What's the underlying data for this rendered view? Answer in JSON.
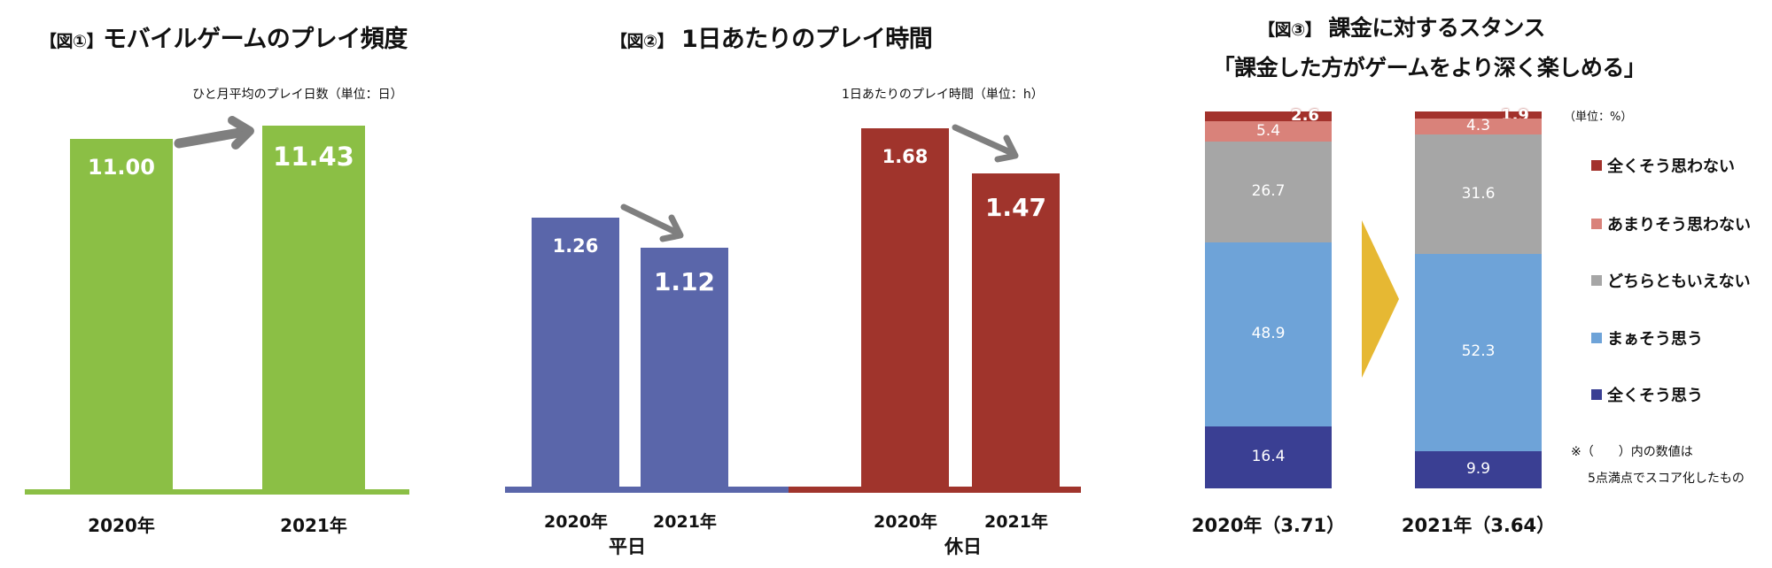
{
  "colors": {
    "green": "#8bbf45",
    "blue": "#5a66aa",
    "red": "#a0342c",
    "arrow": "#7f7f7f",
    "yellow": "#e6b833"
  },
  "chart_data": [
    {
      "type": "bar",
      "title_prefix": "【図①】",
      "title": "モバイルゲームのプレイ頻度",
      "subtitle": "ひと月平均のプレイ日数（単位：日）",
      "categories": [
        "2020年",
        "2021年"
      ],
      "values": [
        11.0,
        11.43
      ],
      "labels": [
        "11.00",
        "11.43"
      ],
      "ylabel": "",
      "xlabel": ""
    },
    {
      "type": "bar",
      "title_prefix": "【図②】",
      "title": "1日あたりのプレイ時間",
      "subtitle": "1日あたりのプレイ時間（単位：h）",
      "groups": [
        {
          "name": "平日",
          "categories": [
            "2020年",
            "2021年"
          ],
          "values": [
            1.26,
            1.12
          ],
          "labels": [
            "1.26",
            "1.12"
          ]
        },
        {
          "name": "休日",
          "categories": [
            "2020年",
            "2021年"
          ],
          "values": [
            1.68,
            1.47
          ],
          "labels": [
            "1.68",
            "1.47"
          ]
        }
      ]
    },
    {
      "type": "bar",
      "stacked": true,
      "title_prefix": "【図③】",
      "title": "課金に対するスタンス",
      "subtitle": "「課金した方がゲームをより深く楽しめる」",
      "unit": "（単位：%）",
      "categories": [
        "2020年（3.71）",
        "2021年（3.64）"
      ],
      "series": [
        {
          "name": "全くそう思わない",
          "color": "#a3322c",
          "values": [
            2.6,
            1.9
          ],
          "labels": [
            "2.6",
            "1.9"
          ]
        },
        {
          "name": "あまりそう思わない",
          "color": "#d9827a",
          "values": [
            5.4,
            4.3
          ],
          "labels": [
            "5.4",
            "4.3"
          ]
        },
        {
          "name": "どちらともいえない",
          "color": "#a6a6a6",
          "values": [
            26.7,
            31.6
          ],
          "labels": [
            "26.7",
            "31.6"
          ]
        },
        {
          "name": "まぁそう思う",
          "color": "#6ea3d8",
          "values": [
            48.9,
            52.3
          ],
          "labels": [
            "48.9",
            "52.3"
          ]
        },
        {
          "name": "全くそう思う",
          "color": "#3a3f93",
          "values": [
            16.4,
            9.9
          ],
          "labels": [
            "16.4",
            "9.9"
          ]
        }
      ],
      "note": [
        "※（　　）内の数値は",
        "5点満点でスコア化したもの"
      ]
    }
  ]
}
